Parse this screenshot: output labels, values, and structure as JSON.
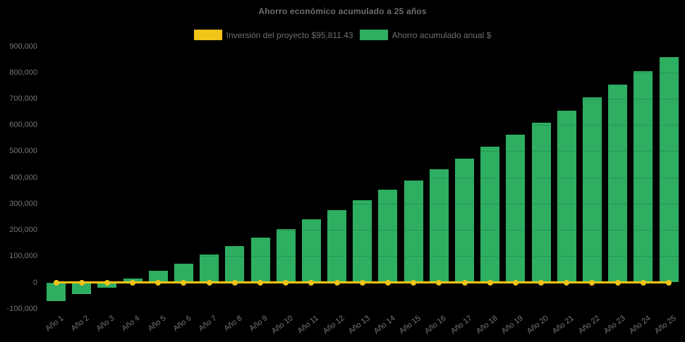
{
  "title": "Ahorro económico acumulado a 25 años",
  "legend": [
    {
      "label": "Inversión del proyecto $95,811.43",
      "color": "#F0C419"
    },
    {
      "label": "Ahorro acumulado anual $",
      "color": "#2EAE61"
    }
  ],
  "colors": {
    "background": "#000000",
    "bar_green": "#2EAE61",
    "line_yellow": "#F0C419",
    "text_gray": "#767676"
  },
  "chart_data": {
    "type": "bar",
    "title": "Ahorro económico acumulado a 25 años",
    "xlabel": "",
    "ylabel": "",
    "ylim": [
      -100000,
      900000
    ],
    "ytick_step": 100000,
    "grid": false,
    "legend_position": "top",
    "categories": [
      "Año 1",
      "Año 2",
      "Año 3",
      "Año 4",
      "Año 5",
      "Año 6",
      "Año 7",
      "Año 8",
      "Año 9",
      "Año 10",
      "Año 11",
      "Año 12",
      "Año 13",
      "Año 14",
      "Año 15",
      "Año 16",
      "Año 17",
      "Año 18",
      "Año 19",
      "Año 20",
      "Año 21",
      "Año 22",
      "Año 23",
      "Año 24",
      "Año 25"
    ],
    "series": [
      {
        "name": "Ahorro acumulado anual $",
        "type": "bar",
        "color": "#2EAE61",
        "values": [
          -72000,
          -45000,
          -20000,
          15000,
          44000,
          72000,
          106000,
          138000,
          171000,
          204000,
          240000,
          275000,
          314000,
          353000,
          389000,
          431000,
          472000,
          516000,
          562000,
          609000,
          655000,
          704000,
          753000,
          806000,
          858000
        ]
      },
      {
        "name": "Inversión del proyecto $95,811.43",
        "type": "line",
        "color": "#F0C419",
        "marker": "circle",
        "values": [
          0,
          0,
          0,
          0,
          0,
          0,
          0,
          0,
          0,
          0,
          0,
          0,
          0,
          0,
          0,
          0,
          0,
          0,
          0,
          0,
          0,
          0,
          0,
          0,
          0
        ]
      }
    ]
  }
}
